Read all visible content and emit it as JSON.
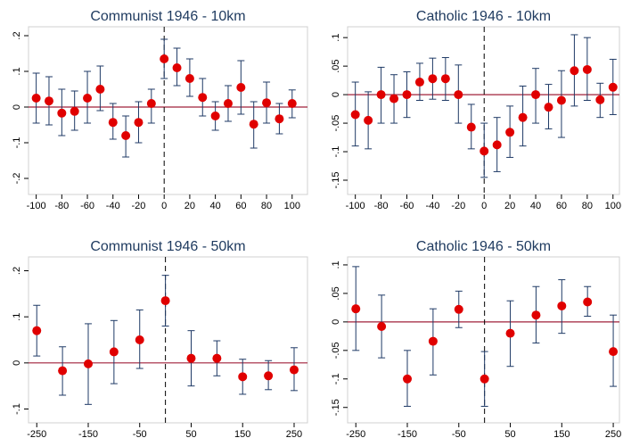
{
  "chart_data": [
    {
      "type": "errorbar",
      "title": "Communist 1946 - 10km",
      "x": [
        -100,
        -90,
        -80,
        -70,
        -60,
        -50,
        -40,
        -30,
        -20,
        -10,
        0,
        10,
        20,
        30,
        40,
        50,
        60,
        70,
        80,
        90,
        100
      ],
      "values": [
        0.025,
        0.017,
        -0.017,
        -0.012,
        0.025,
        0.05,
        -0.043,
        -0.08,
        -0.043,
        0.01,
        0.135,
        0.11,
        0.08,
        0.027,
        -0.025,
        0.01,
        0.055,
        -0.048,
        0.012,
        -0.033,
        0.01
      ],
      "lower": [
        -0.045,
        -0.05,
        -0.08,
        -0.065,
        -0.045,
        -0.01,
        -0.09,
        -0.14,
        -0.1,
        -0.045,
        0.08,
        0.06,
        0.03,
        -0.025,
        -0.065,
        -0.04,
        -0.02,
        -0.115,
        -0.045,
        -0.075,
        -0.03
      ],
      "upper": [
        0.095,
        0.085,
        0.05,
        0.045,
        0.1,
        0.115,
        0.01,
        -0.025,
        0.015,
        0.05,
        0.19,
        0.165,
        0.135,
        0.08,
        0.015,
        0.06,
        0.13,
        0.015,
        0.07,
        0.01,
        0.048
      ],
      "xlim": [
        -106,
        112
      ],
      "xticks": [
        -100,
        -80,
        -60,
        -40,
        -20,
        0,
        20,
        40,
        60,
        80,
        100
      ],
      "ylim": [
        -0.245,
        0.225
      ],
      "yticks": [
        {
          "value": -0.2,
          "label": "-.2"
        },
        {
          "value": -0.1,
          "label": "-.1"
        },
        {
          "value": 0,
          "label": "0"
        },
        {
          "value": 0.1,
          "label": ".1"
        },
        {
          "value": 0.2,
          "label": ".2"
        }
      ],
      "hline": 0,
      "vline": 0,
      "color": "#e00000",
      "bar_color": "#1f3a66",
      "hline_color": "#a0203a"
    },
    {
      "type": "errorbar",
      "title": "Catholic 1946 - 10km",
      "x": [
        -100,
        -90,
        -80,
        -70,
        -60,
        -50,
        -40,
        -30,
        -20,
        -10,
        0,
        10,
        20,
        30,
        40,
        50,
        60,
        70,
        80,
        90,
        100
      ],
      "values": [
        -0.035,
        -0.045,
        0,
        -0.007,
        0,
        0.022,
        0.028,
        0.028,
        0,
        -0.057,
        -0.099,
        -0.088,
        -0.066,
        -0.04,
        0,
        -0.022,
        -0.01,
        0.042,
        0.044,
        -0.009,
        0.013
      ],
      "lower": [
        -0.09,
        -0.095,
        -0.05,
        -0.05,
        -0.04,
        -0.01,
        -0.008,
        -0.01,
        -0.05,
        -0.095,
        -0.145,
        -0.135,
        -0.11,
        -0.09,
        -0.05,
        -0.06,
        -0.075,
        -0.02,
        -0.01,
        -0.04,
        -0.035
      ],
      "upper": [
        0.022,
        0.005,
        0.048,
        0.035,
        0.04,
        0.055,
        0.064,
        0.065,
        0.052,
        -0.017,
        -0.05,
        -0.04,
        -0.02,
        0.015,
        0.046,
        0.018,
        0.042,
        0.105,
        0.1,
        0.02,
        0.062
      ],
      "xlim": [
        -106,
        105
      ],
      "xticks": [
        -100,
        -80,
        -60,
        -40,
        -20,
        0,
        20,
        40,
        60,
        80,
        100
      ],
      "ylim": [
        -0.175,
        0.119
      ],
      "yticks": [
        {
          "value": -0.15,
          "label": "-.15"
        },
        {
          "value": -0.1,
          "label": "-.1"
        },
        {
          "value": -0.05,
          "label": "-.05"
        },
        {
          "value": 0,
          "label": "0"
        },
        {
          "value": 0.05,
          "label": ".05"
        },
        {
          "value": 0.1,
          "label": ".1"
        }
      ],
      "hline": 0,
      "vline": 0,
      "color": "#e00000",
      "bar_color": "#1f3a66",
      "hline_color": "#a0203a"
    },
    {
      "type": "errorbar",
      "title": "Communist 1946 - 50km",
      "x": [
        -250,
        -200,
        -150,
        -100,
        -50,
        0,
        50,
        100,
        150,
        200,
        250
      ],
      "values": [
        0.07,
        -0.017,
        -0.002,
        0.024,
        0.05,
        0.135,
        0.01,
        0.01,
        -0.03,
        -0.028,
        -0.015
      ],
      "lower": [
        0.015,
        -0.07,
        -0.09,
        -0.045,
        -0.012,
        0.08,
        -0.05,
        -0.028,
        -0.068,
        -0.058,
        -0.06
      ],
      "upper": [
        0.125,
        0.035,
        0.085,
        0.092,
        0.115,
        0.19,
        0.07,
        0.048,
        0.008,
        0.005,
        0.033
      ],
      "xlim": [
        -266,
        276
      ],
      "xticks": [
        -250,
        -150,
        -50,
        50,
        150,
        250
      ],
      "ylim": [
        -0.13,
        0.23
      ],
      "yticks": [
        {
          "value": -0.1,
          "label": "-.1"
        },
        {
          "value": 0,
          "label": "0"
        },
        {
          "value": 0.1,
          "label": ".1"
        },
        {
          "value": 0.2,
          "label": ".2"
        }
      ],
      "hline": 0,
      "vline": 0,
      "color": "#e00000",
      "bar_color": "#1f3a66",
      "hline_color": "#a0203a"
    },
    {
      "type": "errorbar",
      "title": "Catholic 1946 - 50km",
      "x": [
        -250,
        -200,
        -150,
        -100,
        -50,
        0,
        50,
        100,
        150,
        200,
        250
      ],
      "values": [
        0.023,
        -0.008,
        -0.1,
        -0.034,
        0.022,
        -0.1,
        -0.02,
        0.012,
        0.028,
        0.035,
        -0.052
      ],
      "lower": [
        -0.05,
        -0.063,
        -0.148,
        -0.093,
        -0.01,
        -0.148,
        -0.078,
        -0.037,
        -0.02,
        0.01,
        -0.113
      ],
      "upper": [
        0.097,
        0.047,
        -0.05,
        0.023,
        0.054,
        -0.052,
        0.037,
        0.062,
        0.074,
        0.062,
        0.012
      ],
      "xlim": [
        -266,
        262
      ],
      "xticks": [
        -250,
        -150,
        -50,
        50,
        150,
        250
      ],
      "ylim": [
        -0.177,
        0.114
      ],
      "yticks": [
        {
          "value": -0.15,
          "label": "-.15"
        },
        {
          "value": -0.1,
          "label": "-.1"
        },
        {
          "value": -0.05,
          "label": "-.05"
        },
        {
          "value": 0,
          "label": "0"
        },
        {
          "value": 0.05,
          "label": ".05"
        },
        {
          "value": 0.1,
          "label": ".1"
        }
      ],
      "hline": 0,
      "vline": 0,
      "color": "#e00000",
      "bar_color": "#1f3a66",
      "hline_color": "#a0203a"
    }
  ]
}
